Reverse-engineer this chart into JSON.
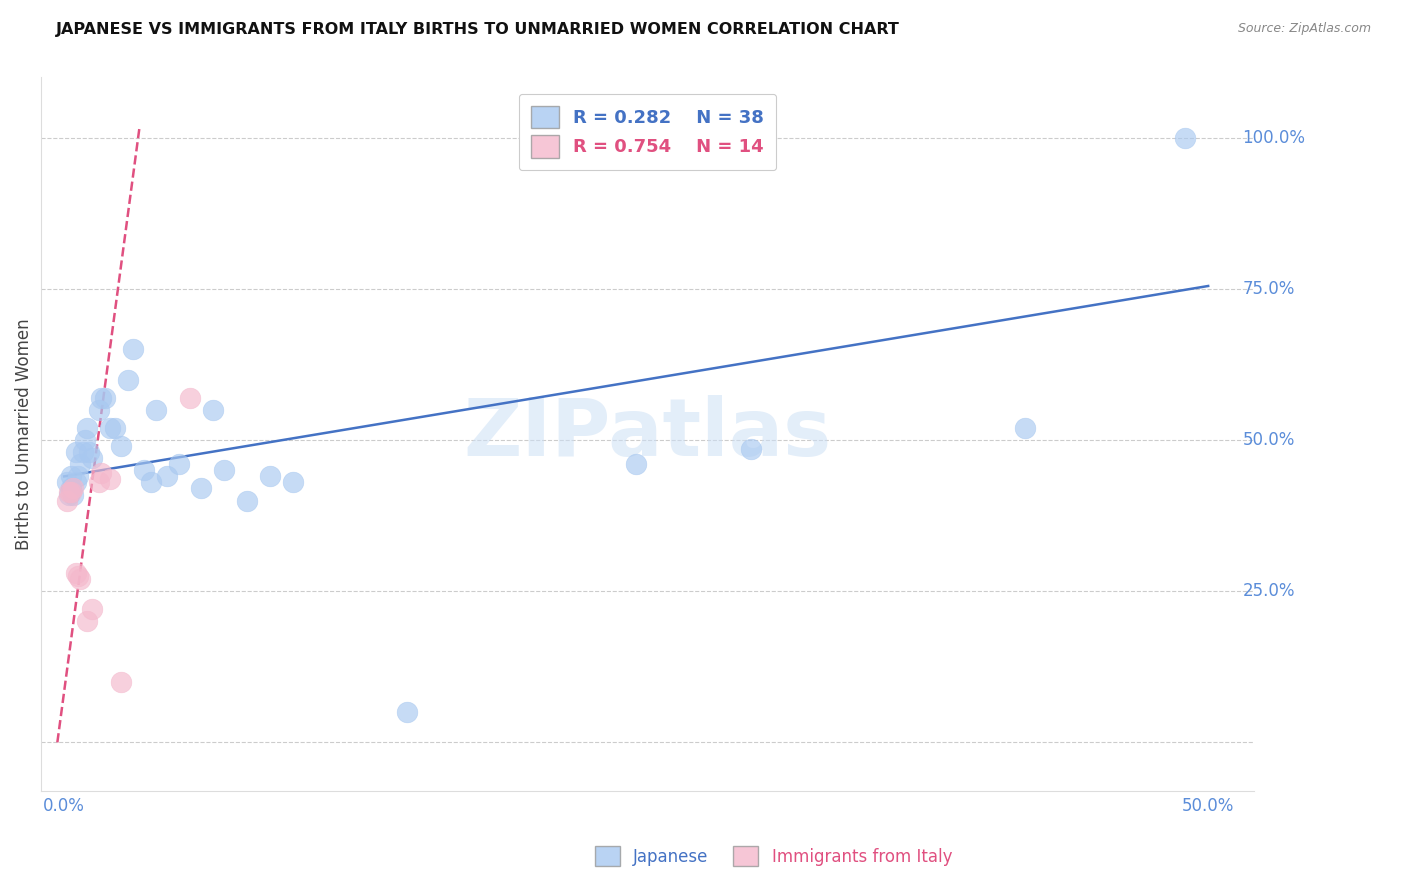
{
  "title": "JAPANESE VS IMMIGRANTS FROM ITALY BIRTHS TO UNMARRIED WOMEN CORRELATION CHART",
  "source": "Source: ZipAtlas.com",
  "ylabel": "Births to Unmarried Women",
  "xlim": [
    -0.01,
    0.52
  ],
  "ylim": [
    -0.08,
    1.1
  ],
  "blue_marker_color": "#a8c8f0",
  "pink_marker_color": "#f4b8cc",
  "blue_line_color": "#4472c4",
  "pink_line_color": "#e05080",
  "label_color": "#5b8dd9",
  "title_color": "#111111",
  "grid_color": "#cccccc",
  "legend_r_blue": "R = 0.282",
  "legend_n_blue": "N = 38",
  "legend_r_pink": "R = 0.754",
  "legend_n_pink": "N = 14",
  "legend_label_blue": "Japanese",
  "legend_label_pink": "Immigrants from Italy",
  "blue_points_x": [
    0.001,
    0.002,
    0.003,
    0.003,
    0.004,
    0.005,
    0.005,
    0.006,
    0.007,
    0.008,
    0.009,
    0.01,
    0.011,
    0.012,
    0.015,
    0.016,
    0.018,
    0.02,
    0.022,
    0.025,
    0.028,
    0.03,
    0.035,
    0.038,
    0.04,
    0.045,
    0.05,
    0.06,
    0.065,
    0.07,
    0.08,
    0.09,
    0.1,
    0.15,
    0.25,
    0.3,
    0.42,
    0.49
  ],
  "blue_points_y": [
    0.43,
    0.41,
    0.42,
    0.44,
    0.41,
    0.43,
    0.48,
    0.44,
    0.46,
    0.48,
    0.5,
    0.52,
    0.48,
    0.47,
    0.55,
    0.57,
    0.57,
    0.52,
    0.52,
    0.49,
    0.6,
    0.65,
    0.45,
    0.43,
    0.55,
    0.44,
    0.46,
    0.42,
    0.55,
    0.45,
    0.4,
    0.44,
    0.43,
    0.05,
    0.46,
    0.485,
    0.52,
    1.0
  ],
  "pink_points_x": [
    0.001,
    0.002,
    0.003,
    0.004,
    0.005,
    0.006,
    0.007,
    0.01,
    0.012,
    0.015,
    0.016,
    0.02,
    0.025,
    0.055
  ],
  "pink_points_y": [
    0.4,
    0.415,
    0.415,
    0.42,
    0.28,
    0.275,
    0.27,
    0.2,
    0.22,
    0.43,
    0.445,
    0.435,
    0.1,
    0.57
  ],
  "blue_trend_x": [
    0.0,
    0.5
  ],
  "blue_trend_y": [
    0.44,
    0.755
  ],
  "pink_trend_x": [
    -0.003,
    0.033
  ],
  "pink_trend_y": [
    0.0,
    1.02
  ],
  "watermark": "ZIPatlas",
  "background_color": "#ffffff"
}
